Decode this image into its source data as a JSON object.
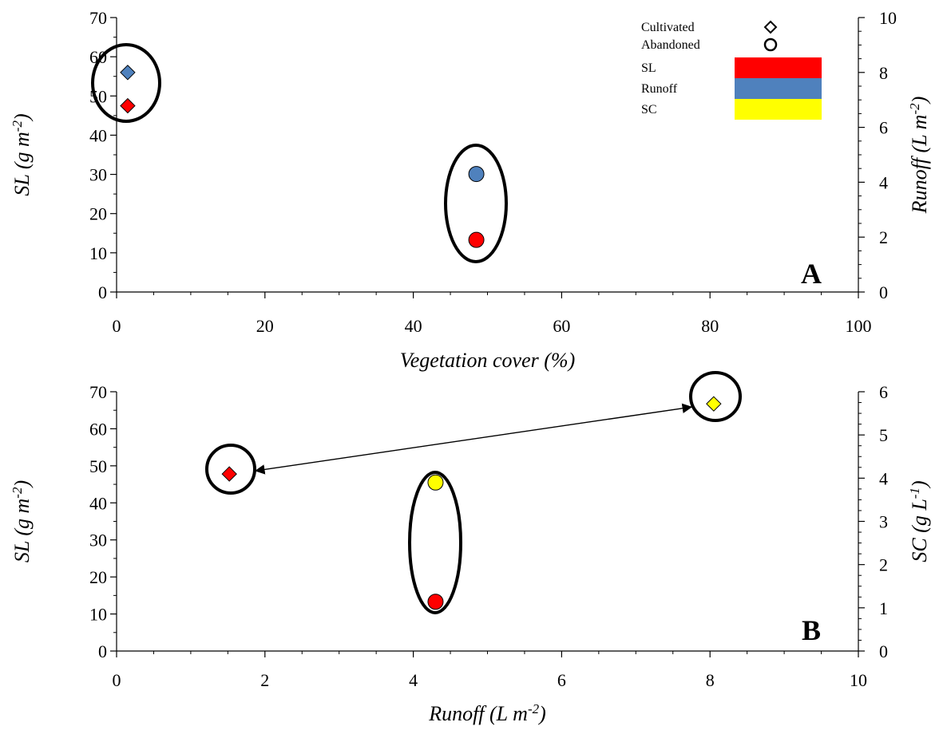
{
  "chart_data": [
    {
      "type": "scatter",
      "panel_label": "A",
      "xlabel": "Vegetation cover (%)",
      "ylabel_left": {
        "main": "SL (g m",
        "sup": "-2",
        "end": ")"
      },
      "ylabel_right": {
        "main": "Runoff (L m",
        "sup": "-2",
        "end": ")"
      },
      "xlim": [
        0,
        100
      ],
      "xticks": [
        0,
        20,
        40,
        60,
        80,
        100
      ],
      "ylim_left": [
        0,
        70
      ],
      "yticks_left": [
        0,
        10,
        20,
        30,
        40,
        50,
        60,
        70
      ],
      "ylim_right": [
        0,
        10
      ],
      "yticks_right": [
        0,
        2,
        4,
        6,
        8,
        10
      ],
      "grid": false,
      "legend": {
        "placement": "top-right",
        "symbols": [
          {
            "label": "Cultivated",
            "marker": "diamond"
          },
          {
            "label": "Abandoned",
            "marker": "circle"
          }
        ],
        "colors": [
          {
            "label": "SL",
            "color": "#FF0000"
          },
          {
            "label": "Runoff",
            "color": "#4F81BD"
          },
          {
            "label": "SC",
            "color": "#FFFF00"
          }
        ]
      },
      "points": [
        {
          "group": "Cultivated",
          "variable": "SL",
          "axis": "left",
          "marker": "diamond",
          "color": "#FF0000",
          "x": 1.5,
          "y": 47.5
        },
        {
          "group": "Cultivated",
          "variable": "Runoff",
          "axis": "right",
          "marker": "diamond",
          "color": "#4F81BD",
          "x": 1.5,
          "y": 8.0
        },
        {
          "group": "Abandoned",
          "variable": "SL",
          "axis": "left",
          "marker": "circle",
          "color": "#FF0000",
          "x": 48.5,
          "y": 13.3
        },
        {
          "group": "Abandoned",
          "variable": "Runoff",
          "axis": "right",
          "marker": "circle",
          "color": "#4F81BD",
          "x": 48.5,
          "y": 4.3
        }
      ]
    },
    {
      "type": "scatter",
      "panel_label": "B",
      "xlabel": {
        "main": "Runoff (L m",
        "sup": "-2",
        "end": ")"
      },
      "ylabel_left": {
        "main": "SL (g m",
        "sup": "-2",
        "end": ")"
      },
      "ylabel_right": {
        "main": "SC (g L",
        "sup": "-1",
        "end": ")"
      },
      "xlim": [
        0,
        10
      ],
      "xticks": [
        0,
        2,
        4,
        6,
        8,
        10
      ],
      "ylim_left": [
        0,
        70
      ],
      "yticks_left": [
        0,
        10,
        20,
        30,
        40,
        50,
        60,
        70
      ],
      "ylim_right": [
        0,
        6
      ],
      "yticks_right": [
        0,
        1,
        2,
        3,
        4,
        5,
        6
      ],
      "grid": false,
      "annotation": "double-headed arrow between Cultivated SL and Cultivated SC",
      "points": [
        {
          "group": "Cultivated",
          "variable": "SL",
          "axis": "left",
          "marker": "diamond",
          "color": "#FF0000",
          "x": 1.52,
          "y": 47.8
        },
        {
          "group": "Cultivated",
          "variable": "SC",
          "axis": "right",
          "marker": "diamond",
          "color": "#FFFF00",
          "x": 8.05,
          "y": 5.72
        },
        {
          "group": "Abandoned",
          "variable": "SL",
          "axis": "left",
          "marker": "circle",
          "color": "#FF0000",
          "x": 4.3,
          "y": 13.3
        },
        {
          "group": "Abandoned",
          "variable": "SC",
          "axis": "right",
          "marker": "circle",
          "color": "#FFFF00",
          "x": 4.3,
          "y": 3.9
        }
      ]
    }
  ]
}
